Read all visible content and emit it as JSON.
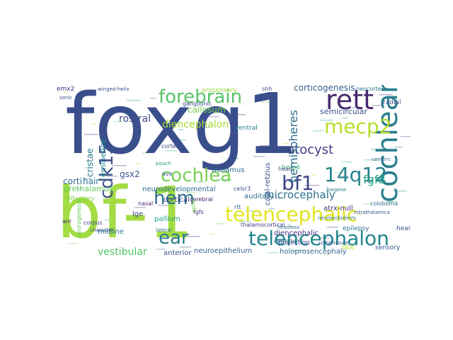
{
  "words": [
    {
      "text": "foxg1",
      "color": "#3a4e8c",
      "rotate": false
    },
    {
      "text": "bf-1",
      "color": "#a3dc43",
      "rotate": false
    },
    {
      "text": "rett",
      "color": "#48286e",
      "rotate": false
    },
    {
      "text": "cochlear",
      "color": "#2a7e8e",
      "rotate": true
    },
    {
      "text": "forebrain",
      "color": "#57c46a",
      "rotate": false
    },
    {
      "text": "mecp2",
      "color": "#b7de2b",
      "rotate": false
    },
    {
      "text": "telencephalic",
      "color": "#e1e41c",
      "rotate": false
    },
    {
      "text": "telencephalon",
      "color": "#21868d",
      "rotate": false
    },
    {
      "text": "cochlea",
      "color": "#79d152",
      "rotate": false
    },
    {
      "text": "cdk15",
      "color": "#3c4f8a",
      "rotate": true
    },
    {
      "text": "hem",
      "color": "#2e6f8e",
      "rotate": false
    },
    {
      "text": "ear",
      "color": "#2b7b8e",
      "rotate": false
    },
    {
      "text": "bf1",
      "color": "#3f4788",
      "rotate": false
    },
    {
      "text": "14q12",
      "color": "#26828e",
      "rotate": false
    },
    {
      "text": "otocyst",
      "color": "#443983",
      "rotate": false
    },
    {
      "text": "hemispheres",
      "color": "#2f6d8e",
      "rotate": true
    },
    {
      "text": "fgf8",
      "color": "#25a584",
      "rotate": false
    },
    {
      "text": "microcephaly",
      "color": "#2c728e",
      "rotate": false
    },
    {
      "text": "diencephalon",
      "color": "#a8db34",
      "rotate": false
    },
    {
      "text": "rostral",
      "color": "#3e4a89",
      "rotate": false
    },
    {
      "text": "vestibular",
      "color": "#52c569",
      "rotate": false
    },
    {
      "text": "corticogenesis",
      "color": "#34618d",
      "rotate": false
    },
    {
      "text": "semicircular",
      "color": "#3c4f8a",
      "rotate": false
    },
    {
      "text": "callosum",
      "color": "#7ad151",
      "rotate": false
    },
    {
      "text": "cristae",
      "color": "#2a788e",
      "rotate": true
    },
    {
      "text": "eminence",
      "color": "#228d8d",
      "rotate": true
    },
    {
      "text": "gsx2",
      "color": "#3b518b",
      "rotate": false
    },
    {
      "text": "corti",
      "color": "#30698e",
      "rotate": false
    },
    {
      "text": "hair",
      "color": "#2a768e",
      "rotate": false
    },
    {
      "text": "prethalamus",
      "color": "#65cb5e",
      "rotate": false
    },
    {
      "text": "neurodevelopmental",
      "color": "#2e6e8e",
      "rotate": false
    },
    {
      "text": "cortical",
      "color": "#3e4989",
      "rotate": false
    },
    {
      "text": "lge",
      "color": "#404688",
      "rotate": false
    },
    {
      "text": "midline",
      "color": "#2c728e",
      "rotate": false
    },
    {
      "text": "pallium",
      "color": "#1fa187",
      "rotate": false
    },
    {
      "text": "anterior",
      "color": "#3b528b",
      "rotate": false
    },
    {
      "text": "neuroepithelium",
      "color": "#355f8d",
      "rotate": false
    },
    {
      "text": "holoprosencephaly",
      "color": "#31688e",
      "rotate": false
    },
    {
      "text": "diencephalic",
      "color": "#472d7b",
      "rotate": false
    },
    {
      "text": "thalamus",
      "color": "#2d708e",
      "rotate": false
    },
    {
      "text": "cajal-retzius",
      "color": "#3d4d8a",
      "rotate": true
    },
    {
      "text": "atrx-null",
      "color": "#46337f",
      "rotate": false
    },
    {
      "text": "auditory",
      "color": "#2d708e",
      "rotate": false
    },
    {
      "text": "projection",
      "color": "#3f4889",
      "rotate": false
    },
    {
      "text": "otic",
      "color": "#b5de2b",
      "rotate": false
    },
    {
      "text": "sensory",
      "color": "#37598c",
      "rotate": false
    },
    {
      "text": "hearing",
      "color": "#3b518b",
      "rotate": false
    },
    {
      "text": "epilepsy",
      "color": "#2c728e",
      "rotate": false
    },
    {
      "text": "neocortex",
      "color": "#2a778e",
      "rotate": false
    },
    {
      "text": "radial",
      "color": "#3d4e8a",
      "rotate": false
    },
    {
      "text": "emx2",
      "color": "#472c7a",
      "rotate": false
    },
    {
      "text": "sonic",
      "color": "#3b528b",
      "rotate": false
    },
    {
      "text": "ganglionic",
      "color": "#3e4c8a",
      "rotate": false
    },
    {
      "text": "prosensory",
      "color": "#9bd93c",
      "rotate": false
    },
    {
      "text": "shh",
      "color": "#3f4788",
      "rotate": false
    },
    {
      "text": "ventral",
      "color": "#25848e",
      "rotate": false
    },
    {
      "text": "cortex",
      "color": "#423f85",
      "rotate": false
    },
    {
      "text": "olfactory",
      "color": "#81d34d",
      "rotate": false
    },
    {
      "text": "anr",
      "color": "#472c7a",
      "rotate": false
    },
    {
      "text": "corpus",
      "color": "#404588",
      "rotate": false
    },
    {
      "text": "nasal",
      "color": "#482374",
      "rotate": false
    },
    {
      "text": "ave",
      "color": "#3b518b",
      "rotate": false
    },
    {
      "text": "rtt",
      "color": "#2c718e",
      "rotate": false
    },
    {
      "text": "fgfs",
      "color": "#46337f",
      "rotate": false
    },
    {
      "text": "celsr3",
      "color": "#3d4e8a",
      "rotate": false
    },
    {
      "text": "bmp4",
      "color": "#3fbc73",
      "rotate": false
    },
    {
      "text": "cerebral",
      "color": "#48186a",
      "rotate": false
    },
    {
      "text": "lateral",
      "color": "#31688e",
      "rotate": false
    },
    {
      "text": "dentate",
      "color": "#2f6c8e",
      "rotate": false
    },
    {
      "text": "head",
      "color": "#3e4989",
      "rotate": false
    },
    {
      "text": "neuroectoderm",
      "color": "#2d708e",
      "rotate": false
    },
    {
      "text": "coloboma",
      "color": "#2e6f8e",
      "rotate": false
    },
    {
      "text": "thalamocortical",
      "color": "#443b84",
      "rotate": false
    },
    {
      "text": "pouch",
      "color": "#1f9f88",
      "rotate": false
    },
    {
      "text": "character",
      "color": "#3b518b",
      "rotate": false
    },
    {
      "text": "winged-helix",
      "color": "#3e4a89",
      "rotate": false
    },
    {
      "text": "centers",
      "color": "#2f6b8e",
      "rotate": false
    },
    {
      "text": "headless",
      "color": "#2d718e",
      "rotate": false
    },
    {
      "text": "commissure",
      "color": "#3a548c",
      "rotate": false
    },
    {
      "text": "intrathalamica",
      "color": "#3a548c",
      "rotate": false
    },
    {
      "text": "neurogenesis",
      "color": "#67cc5c",
      "rotate": true
    },
    {
      "text": "optic",
      "color": "#7ad151",
      "rotate": true
    },
    {
      "text": "foxgene",
      "color": "#2a788e",
      "rotate": false
    }
  ]
}
